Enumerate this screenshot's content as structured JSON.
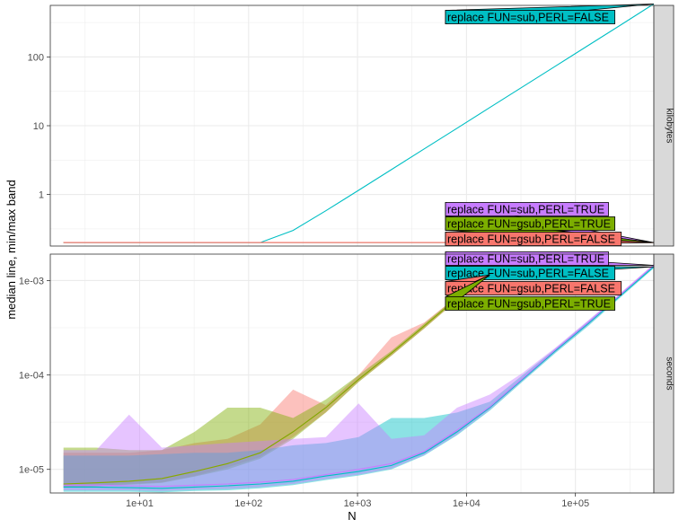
{
  "chart_data": {
    "type": "line",
    "ylabel": "median line, min/max band",
    "xlabel": "N",
    "x_scale": "log10",
    "x_ticks": [
      "1e+01",
      "1e+02",
      "1e+03",
      "1e+04",
      "1e+05"
    ],
    "colors": {
      "replace FUN=gsub,PERL=FALSE": "#F8766D",
      "replace FUN=gsub,PERL=TRUE": "#7CAE00",
      "replace FUN=sub,PERL=FALSE": "#00BFC4",
      "replace FUN=sub,PERL=TRUE": "#C77CFF"
    },
    "panels": [
      {
        "strip": "kilobytes",
        "y_scale": "log10",
        "y_ticks": [
          "1",
          "10",
          "100"
        ],
        "series": [
          {
            "name": "replace FUN=sub,PERL=FALSE",
            "x": [
              2,
              4,
              8,
              16,
              32,
              64,
              128,
              256,
              512,
              1024,
              2048,
              4096,
              8192,
              16384,
              32768,
              65536,
              131072,
              262144,
              524288
            ],
            "median": [
              0.2,
              0.2,
              0.2,
              0.2,
              0.2,
              0.2,
              0.2,
              0.3,
              0.58,
              1.15,
              2.3,
              4.6,
              9.2,
              18.4,
              36.8,
              73.5,
              147,
              294,
              590
            ]
          },
          {
            "name": "replace FUN=sub,PERL=TRUE",
            "x": [
              2,
              128,
              16384,
              524288
            ],
            "median": [
              0.2,
              0.2,
              0.2,
              0.2
            ]
          },
          {
            "name": "replace FUN=gsub,PERL=TRUE",
            "x": [
              2,
              128,
              16384,
              524288
            ],
            "median": [
              0.2,
              0.2,
              0.2,
              0.2
            ]
          },
          {
            "name": "replace FUN=gsub,PERL=FALSE",
            "x": [
              2,
              128,
              16384,
              524288
            ],
            "median": [
              0.2,
              0.2,
              0.2,
              0.2
            ]
          }
        ],
        "labels": [
          {
            "text": "replace FUN=sub,PERL=FALSE",
            "series": "replace FUN=sub,PERL=FALSE"
          },
          {
            "text": "replace FUN=sub,PERL=TRUE",
            "series": "replace FUN=sub,PERL=TRUE"
          },
          {
            "text": "replace FUN=gsub,PERL=TRUE",
            "series": "replace FUN=gsub,PERL=TRUE"
          },
          {
            "text": "replace FUN=gsub,PERL=FALSE",
            "series": "replace FUN=gsub,PERL=FALSE"
          }
        ]
      },
      {
        "strip": "seconds",
        "y_scale": "log10",
        "y_ticks": [
          "1e-05",
          "1e-04",
          "1e-03"
        ],
        "series": [
          {
            "name": "replace FUN=gsub,PERL=FALSE",
            "x": [
              2,
              4,
              8,
              16,
              32,
              64,
              128,
              256,
              512,
              1024,
              2048,
              4096,
              8192,
              16384
            ],
            "median": [
              7e-06,
              7.2e-06,
              7.5e-06,
              8e-06,
              9.5e-06,
              1.15e-05,
              1.5e-05,
              2.5e-05,
              4.5e-05,
              9e-05,
              0.00017,
              0.00033,
              0.00065,
              0.00115
            ],
            "min": [
              6.5e-06,
              6.7e-06,
              7e-06,
              7.3e-06,
              8.5e-06,
              1.05e-05,
              1.35e-05,
              2.2e-05,
              4e-05,
              8.5e-05,
              0.00016,
              0.00031,
              0.00062,
              0.00112
            ],
            "max": [
              1.5e-05,
              1.5e-05,
              1.5e-05,
              1.6e-05,
              1.9e-05,
              2.1e-05,
              3e-05,
              7e-05,
              4.8e-05,
              0.0001,
              0.00025,
              0.00036,
              0.00068,
              0.0012
            ]
          },
          {
            "name": "replace FUN=gsub,PERL=TRUE",
            "x": [
              2,
              4,
              8,
              16,
              32,
              64,
              128,
              256,
              512,
              1024,
              2048,
              4096,
              8192,
              16384
            ],
            "median": [
              7e-06,
              7.2e-06,
              7.5e-06,
              8e-06,
              9.5e-06,
              1.15e-05,
              1.5e-05,
              2.5e-05,
              4.5e-05,
              9e-05,
              0.00017,
              0.00033,
              0.00065,
              0.00115
            ],
            "min": [
              6.4e-06,
              6.6e-06,
              6.9e-06,
              7.2e-06,
              8.4e-06,
              1e-05,
              1.3e-05,
              2.1e-05,
              4e-05,
              8.4e-05,
              0.00016,
              0.00031,
              0.00062,
              0.00112
            ],
            "max": [
              1.7e-05,
              1.7e-05,
              1.6e-05,
              1.6e-05,
              2.5e-05,
              4.5e-05,
              4.5e-05,
              3.5e-05,
              5.5e-05,
              0.0001,
              0.00018,
              0.00035,
              0.00068,
              0.0012
            ]
          },
          {
            "name": "replace FUN=sub,PERL=FALSE",
            "x": [
              2,
              4,
              8,
              16,
              32,
              64,
              128,
              256,
              512,
              1024,
              2048,
              4096,
              8192,
              16384,
              32768,
              65536,
              131072,
              262144,
              524288
            ],
            "median": [
              6.5e-06,
              6.5e-06,
              6.4e-06,
              6.3e-06,
              6.5e-06,
              6.7e-06,
              7e-06,
              7.5e-06,
              8.5e-06,
              9.5e-06,
              1.1e-05,
              1.5e-05,
              2.5e-05,
              4.5e-05,
              9e-05,
              0.00018,
              0.00035,
              0.0007,
              0.0014
            ],
            "min": [
              5.8e-06,
              5.8e-06,
              5.8e-06,
              5.7e-06,
              5.9e-06,
              6e-06,
              6.3e-06,
              6.8e-06,
              7.7e-06,
              8.6e-06,
              1e-05,
              1.4e-05,
              2.3e-05,
              4.2e-05,
              8.5e-05,
              0.00017,
              0.00033,
              0.00067,
              0.00135
            ],
            "max": [
              1.4e-05,
              1.4e-05,
              1.4e-05,
              1.45e-05,
              1.5e-05,
              1.5e-05,
              1.6e-05,
              1.8e-05,
              1.9e-05,
              2.2e-05,
              3.5e-05,
              3.5e-05,
              4e-05,
              5.2e-05,
              0.0001,
              0.00019,
              0.00037,
              0.00073,
              0.00145
            ]
          },
          {
            "name": "replace FUN=sub,PERL=TRUE",
            "x": [
              2,
              4,
              8,
              16,
              32,
              64,
              128,
              256,
              512,
              1024,
              2048,
              4096,
              8192,
              16384,
              32768,
              65536,
              131072,
              262144,
              524288
            ],
            "median": [
              6.8e-06,
              6.8e-06,
              6.7e-06,
              6.6e-06,
              6.8e-06,
              7e-06,
              7.3e-06,
              7.8e-06,
              8.8e-06,
              1e-05,
              1.15e-05,
              1.55e-05,
              2.6e-05,
              4.6e-05,
              9.2e-05,
              0.000185,
              0.00036,
              0.00072,
              0.00145
            ],
            "min": [
              6e-06,
              6e-06,
              6e-06,
              5.9e-06,
              6.1e-06,
              6.2e-06,
              6.5e-06,
              7e-06,
              7.9e-06,
              8.8e-06,
              1.02e-05,
              1.42e-05,
              2.35e-05,
              4.3e-05,
              8.7e-05,
              0.000175,
              0.00034,
              0.00069,
              0.0014
            ],
            "max": [
              1.6e-05,
              1.6e-05,
              3.8e-05,
              1.7e-05,
              1.8e-05,
              1.9e-05,
              2e-05,
              2.1e-05,
              2.2e-05,
              5e-05,
              2.1e-05,
              2.3e-05,
              4.5e-05,
              6.2e-05,
              0.000105,
              0.000195,
              0.00038,
              0.00075,
              0.0015
            ]
          }
        ],
        "labels": [
          {
            "text": "replace FUN=sub,PERL=TRUE",
            "series": "replace FUN=sub,PERL=TRUE"
          },
          {
            "text": "replace FUN=sub,PERL=FALSE",
            "series": "replace FUN=sub,PERL=FALSE"
          },
          {
            "text": "replace FUN=gsub,PERL=FALSE",
            "series": "replace FUN=gsub,PERL=FALSE"
          },
          {
            "text": "replace FUN=gsub,PERL=TRUE",
            "series": "replace FUN=gsub,PERL=TRUE"
          }
        ]
      }
    ]
  }
}
